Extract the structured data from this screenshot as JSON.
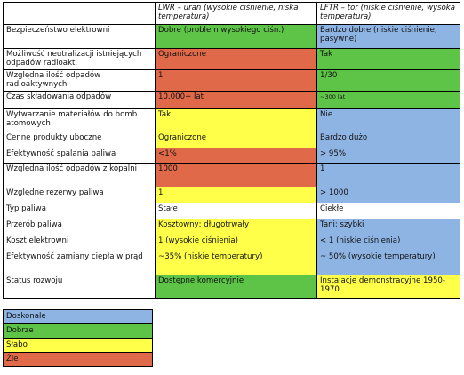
{
  "colors": {
    "blue": "#8eb4e3",
    "green": "#5ec447",
    "yellow": "#ffff4a",
    "red": "#e0694a",
    "white": "#ffffff"
  },
  "table": {
    "header": {
      "lwr": "LWR – uran (wysokie ciśnienie, niska temperatura)",
      "lftr": "LFTR – tor (niskie ciśnienie, wysoka temperatura)"
    },
    "rows": [
      {
        "label": "Bezpieczeństwo elektrowni",
        "lwr": "Dobre (problem wysokiego ciśn.)",
        "lwr_color": "green",
        "lftr": "Bardzo dobre (niskie ciśnienie, pasywne)",
        "lftr_color": "blue"
      },
      {
        "label": "Możliwość neutralizacji istniejących odpadów radioakt.",
        "lwr": "Ograniczone",
        "lwr_color": "red",
        "lftr": "Tak",
        "lftr_color": "green"
      },
      {
        "label": "Względna ilość odpadów radioaktywnych",
        "lwr": "1",
        "lwr_color": "red",
        "lftr": "1/30",
        "lftr_color": "green"
      },
      {
        "label": "Czas składowania odpadów",
        "lwr": "10.000+ lat",
        "lwr_color": "red",
        "lftr": "~300 lat",
        "lftr_color": "green"
      },
      {
        "label": "Wytwarzanie materiałów do bomb atomowych",
        "lwr": "Tak",
        "lwr_color": "yellow",
        "lftr": "Nie",
        "lftr_color": "blue"
      },
      {
        "label": "Cenne produkty uboczne",
        "lwr": "Ograniczone",
        "lwr_color": "yellow",
        "lftr": "Bardzo dużo",
        "lftr_color": "blue"
      },
      {
        "label": "Efektywność spalania paliwa",
        "lwr": "<1%",
        "lwr_color": "red",
        "lftr": "> 95%",
        "lftr_color": "blue"
      },
      {
        "label": "Względna ilość odpadów z kopalni",
        "lwr": "1000",
        "lwr_color": "red",
        "lftr": "1",
        "lftr_color": "blue"
      },
      {
        "label": "Względne rezerwy paliwa",
        "lwr": "1",
        "lwr_color": "yellow",
        "lftr": "> 1000",
        "lftr_color": "blue"
      },
      {
        "label": "Typ paliwa",
        "lwr": "Stałe",
        "lwr_color": "white",
        "lftr": "Ciekłe",
        "lftr_color": "white"
      },
      {
        "label": "Przerób paliwa",
        "lwr": "Kosztowny; długotrwały",
        "lwr_color": "yellow",
        "lftr": "Tani; szybki",
        "lftr_color": "blue"
      },
      {
        "label": "Koszt elektrowni",
        "lwr": "1 (wysokie ciśnienia)",
        "lwr_color": "yellow",
        "lftr": "< 1 (niskie ciśnienia)",
        "lftr_color": "blue"
      },
      {
        "label": "Efektywność zamiany ciepła w prąd",
        "lwr": "~35% (niskie temperatury)",
        "lwr_color": "yellow",
        "lftr": "~ 50% (wysokie temperatury)",
        "lftr_color": "blue"
      },
      {
        "label": "Status rozwoju",
        "lwr": "Dostępne komercyjnie",
        "lwr_color": "green",
        "lftr": "Instalacje demonstracyjne 1950-1970",
        "lftr_color": "yellow"
      }
    ]
  },
  "legend": [
    {
      "label": "Doskonale",
      "color": "blue"
    },
    {
      "label": "Dobrze",
      "color": "green"
    },
    {
      "label": "Słabo",
      "color": "yellow"
    },
    {
      "label": "Źle",
      "color": "red"
    }
  ]
}
